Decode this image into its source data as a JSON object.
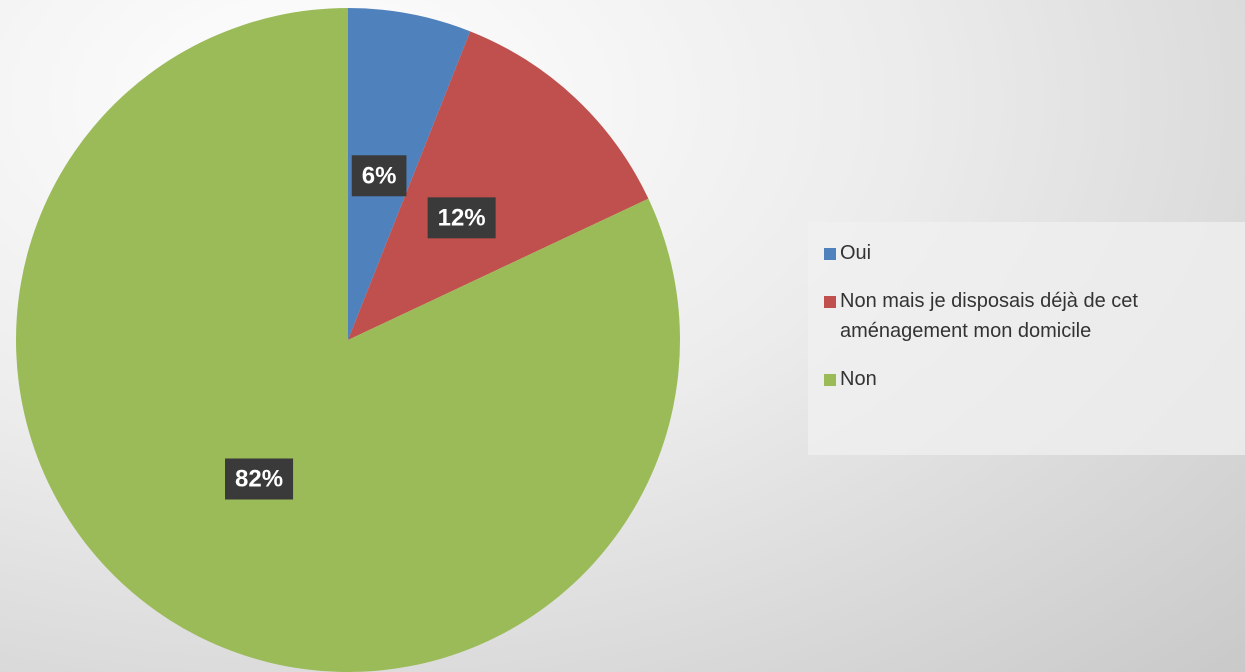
{
  "chart_data": {
    "type": "pie",
    "categories": [
      "Oui",
      "Non mais je disposais déjà de cet aménagement mon domicile",
      "Non"
    ],
    "values": [
      6,
      12,
      82
    ],
    "value_labels": [
      "6%",
      "12%",
      "82%"
    ],
    "colors": [
      "#4f81bd",
      "#c0504d",
      "#9bbb59"
    ],
    "legend": "right"
  }
}
